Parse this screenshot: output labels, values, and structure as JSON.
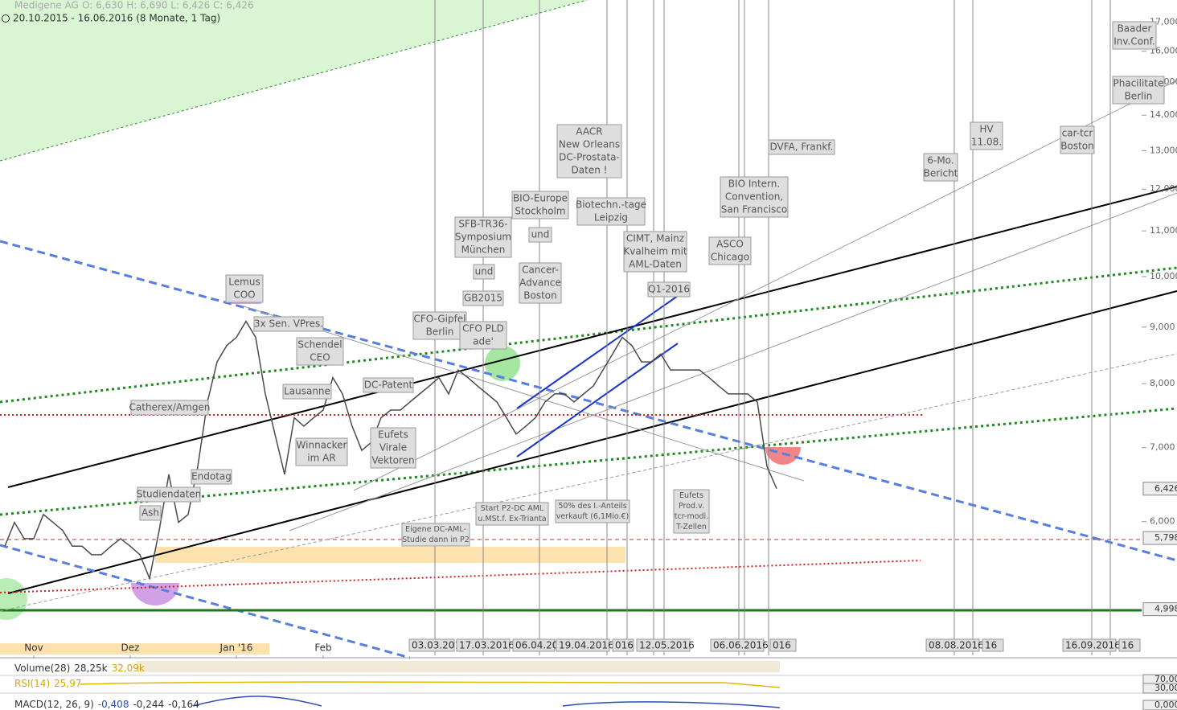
{
  "header": {
    "title": "Medigene AG",
    "ohlc": "O: 6,630  H: 6,690  L: 6,426  C: 6,426",
    "range": "20.10.2015 - 16.06.2016 (8 Monate, 1 Tag)"
  },
  "chart_data": {
    "type": "line",
    "log_scale": true,
    "color": "#4a4a4a",
    "categories": [
      null,
      null,
      null,
      "Nov",
      null,
      null,
      null,
      null,
      null,
      null,
      null,
      null,
      null,
      "Dez",
      null,
      null,
      null,
      null,
      null,
      null,
      null,
      null,
      null,
      null,
      "Jan '16",
      null,
      null,
      null,
      null,
      null,
      null,
      null,
      null,
      "Feb",
      null,
      null,
      null,
      null,
      null,
      null,
      null,
      null,
      null,
      null,
      null,
      null,
      null,
      null,
      null,
      null,
      null,
      null,
      null,
      null,
      null,
      null,
      null,
      null,
      null,
      null,
      null,
      null,
      null,
      null,
      null,
      null,
      null,
      null,
      null,
      null,
      null,
      null,
      null,
      null,
      null,
      null,
      null,
      null,
      null,
      null,
      null
    ],
    "values": [
      5.7,
      5.99,
      5.79,
      5.79,
      6.09,
      5.99,
      5.89,
      5.7,
      5.7,
      5.6,
      5.6,
      5.7,
      5.79,
      5.7,
      5.6,
      5.33,
      5.89,
      6.62,
      5.99,
      6.09,
      6.73,
      7.7,
      8.37,
      8.66,
      8.81,
      9.11,
      8.81,
      7.83,
      7.2,
      6.62,
      7.45,
      7.32,
      7.45,
      7.57,
      8.1,
      7.83,
      7.32,
      6.96,
      7.08,
      7.45,
      7.57,
      7.57,
      7.7,
      7.83,
      7.96,
      8.1,
      7.83,
      8.23,
      8.1,
      7.96,
      7.83,
      7.7,
      7.45,
      7.2,
      7.32,
      7.45,
      7.7,
      7.83,
      7.83,
      7.7,
      7.83,
      7.96,
      8.23,
      8.51,
      8.81,
      8.66,
      8.37,
      8.37,
      8.51,
      8.23,
      8.23,
      8.23,
      8.23,
      8.1,
      7.96,
      7.83,
      7.83,
      7.83,
      7.7,
      6.73,
      6.426
    ],
    "ylim": [
      4.54,
      17.8
    ],
    "yticks": [
      {
        "value": 6,
        "label": "6,000"
      },
      {
        "value": 7,
        "label": "7,000"
      },
      {
        "value": 8,
        "label": "8,000"
      },
      {
        "value": 9,
        "label": "9,000"
      },
      {
        "value": 10,
        "label": "10,000"
      },
      {
        "value": 11,
        "label": "11,000"
      },
      {
        "value": 12,
        "label": "12,000"
      },
      {
        "value": 13,
        "label": "13,000"
      },
      {
        "value": 14,
        "label": "14,000"
      },
      {
        "value": 15,
        "label": "15,000"
      },
      {
        "value": 16,
        "label": "16,000"
      },
      {
        "value": 17,
        "label": "17,000"
      }
    ],
    "price_markers": [
      {
        "value": 6.426,
        "label": "6,426"
      },
      {
        "value": 5.798,
        "label": "5,798"
      },
      {
        "value": 4.998,
        "label": "4,998"
      }
    ]
  },
  "annotations": [
    [
      "Lemus",
      "COO"
    ],
    [
      "3x Sen. VPres."
    ],
    [
      "Schendel",
      "CEO"
    ],
    [
      "Lausanne"
    ],
    [
      "Catherex/Amgen"
    ],
    [
      "Winnacker",
      "im AR"
    ],
    [
      "Eufets",
      "Virale",
      "Vektoren"
    ],
    [
      "DC-Patent"
    ],
    [
      "CFO-Gipfel",
      "Berlin"
    ],
    [
      "CFO PLD",
      "ade'"
    ],
    [
      "SFB-TR36-",
      "Symposium",
      "München"
    ],
    [
      "und"
    ],
    [
      "GB2015"
    ],
    [
      "BIO-Europe",
      "Stockholm"
    ],
    [
      "und"
    ],
    [
      "Cancer-",
      "Advance",
      "Boston"
    ],
    [
      "AACR",
      "New Orleans",
      "DC-Prostata-",
      "Daten !"
    ],
    [
      "Biotechn.-tage",
      "Leipzig"
    ],
    [
      "CIMT, Mainz",
      "Kvalheim mit",
      "AML-Daten"
    ],
    [
      "Q1-2016"
    ],
    [
      "ASCO",
      "Chicago"
    ],
    [
      "BIO Intern.",
      "Convention,",
      "San Francisco"
    ],
    [
      "DVFA, Frankf."
    ],
    [
      "6-Mo.",
      "Bericht"
    ],
    [
      "HV",
      "11.08."
    ],
    [
      "car-tcr",
      "Boston"
    ],
    [
      "Baader",
      "Inv.Conf."
    ],
    [
      "Phacilitate",
      "Berlin"
    ],
    [
      "Studiendaten"
    ],
    [
      "Endotag"
    ],
    [
      "Ash"
    ],
    [
      "Eigene DC-AML-",
      "Studie dann in P2"
    ],
    [
      "Start P2-DC AML",
      "u.MSt.f. Ex-Trianta"
    ],
    [
      "50% des I.-Anteils",
      "verkauft (6,1Mio.€)"
    ],
    [
      "Eufets",
      "Prod.v.",
      "tcr-modi.",
      "T-Zellen"
    ]
  ],
  "events": [
    "03.03.201",
    "17.03.2016",
    "06.04.20",
    "19.04.2016",
    "016",
    "12.05.2016",
    "06.06.2016",
    "016",
    "08.08.2016",
    "16",
    "16.09.2016",
    "16"
  ],
  "indicators": [
    [
      "Volume(28)",
      "28,25k",
      "32,09k"
    ],
    [
      "RSI(14)",
      "25,97"
    ],
    [
      "MACD(12, 26, 9)",
      "-0,408",
      "-0,244",
      "-0,164"
    ]
  ],
  "indicator_axis": [
    "70,00",
    "30,00",
    "0,000"
  ]
}
